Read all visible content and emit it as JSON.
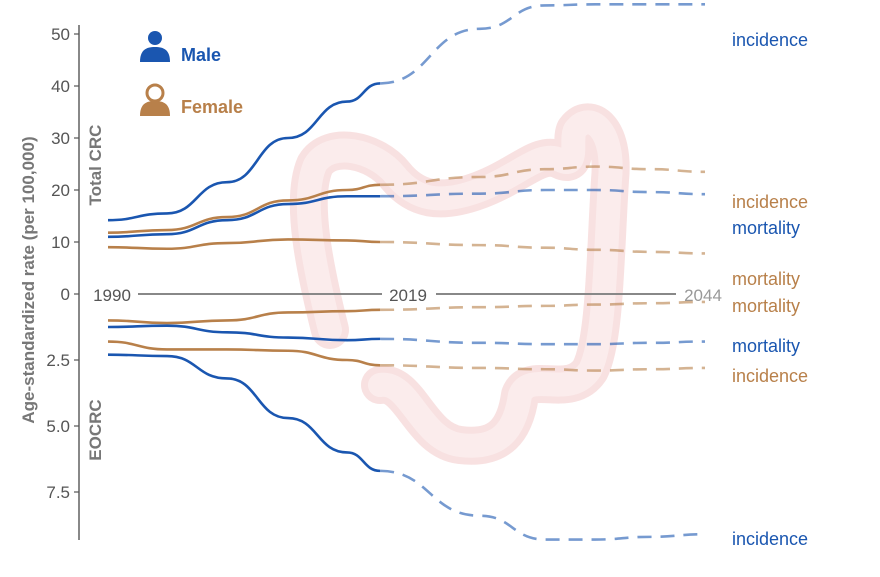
{
  "chart_data": {
    "type": "line",
    "ylabel": "Age-standardized rate (per 100,000)",
    "panels": [
      {
        "name": "Total CRC",
        "direction": "up",
        "ticks": [
          10,
          20,
          30,
          40,
          50
        ]
      },
      {
        "name": "EOCRC",
        "direction": "down",
        "ticks": [
          2.5,
          5.0,
          7.5
        ]
      }
    ],
    "zero_label": "0",
    "timeline": {
      "years": [
        "1990",
        "2019",
        "2044"
      ]
    },
    "legend": [
      {
        "label": "Male",
        "color": "#1a56b0",
        "icon": "male-person-icon"
      },
      {
        "label": "Female",
        "color": "#b8804a",
        "icon": "female-person-icon"
      }
    ],
    "x_points": [
      1990,
      1995,
      2000,
      2005,
      2010,
      2015,
      2019,
      2025,
      2030,
      2035,
      2040,
      2044
    ],
    "observed_until": 2019,
    "series": [
      {
        "panel": "Total CRC",
        "sex": "Male",
        "label": "incidence",
        "color": "#1a56b0",
        "values": [
          14.2,
          15.5,
          21.5,
          30.0,
          37.0,
          40.5,
          null,
          51,
          55.5,
          55.7,
          55.7,
          55.7
        ]
      },
      {
        "panel": "Total CRC",
        "sex": "Female",
        "label": "incidence",
        "color": "#b8804a",
        "values": [
          11.8,
          12.3,
          14.8,
          18.0,
          20.0,
          21.0,
          null,
          22.5,
          24.0,
          24.5,
          24.0,
          23.5
        ]
      },
      {
        "panel": "Total CRC",
        "sex": "Male",
        "label": "mortality",
        "color": "#1a56b0",
        "values": [
          11.0,
          11.5,
          14.2,
          17.3,
          18.8,
          18.8,
          null,
          19.3,
          20.0,
          20.0,
          19.6,
          19.2
        ]
      },
      {
        "panel": "Total CRC",
        "sex": "Female",
        "label": "mortality",
        "color": "#b8804a",
        "values": [
          9.0,
          8.7,
          9.8,
          10.5,
          10.3,
          10.0,
          null,
          9.4,
          8.9,
          8.5,
          8.1,
          7.8
        ]
      },
      {
        "panel": "EOCRC",
        "sex": "Female",
        "label": "mortality",
        "color": "#b8804a",
        "values": [
          1.0,
          1.1,
          1.0,
          0.7,
          0.65,
          0.6,
          null,
          0.5,
          0.45,
          0.4,
          0.35,
          0.3
        ]
      },
      {
        "panel": "EOCRC",
        "sex": "Male",
        "label": "mortality",
        "color": "#1a56b0",
        "values": [
          1.25,
          1.2,
          1.45,
          1.65,
          1.75,
          1.7,
          null,
          1.85,
          1.9,
          1.9,
          1.85,
          1.8
        ]
      },
      {
        "panel": "EOCRC",
        "sex": "Male",
        "label": "incidence",
        "color": "#1a56b0",
        "values": [
          2.3,
          2.35,
          3.2,
          4.7,
          6.0,
          6.7,
          null,
          8.4,
          9.3,
          9.3,
          9.2,
          9.1
        ]
      },
      {
        "panel": "EOCRC",
        "sex": "Female",
        "label": "incidence",
        "color": "#b8804a",
        "values": [
          1.8,
          2.1,
          2.1,
          2.15,
          2.5,
          2.7,
          null,
          2.8,
          2.85,
          2.9,
          2.85,
          2.8
        ]
      }
    ]
  }
}
